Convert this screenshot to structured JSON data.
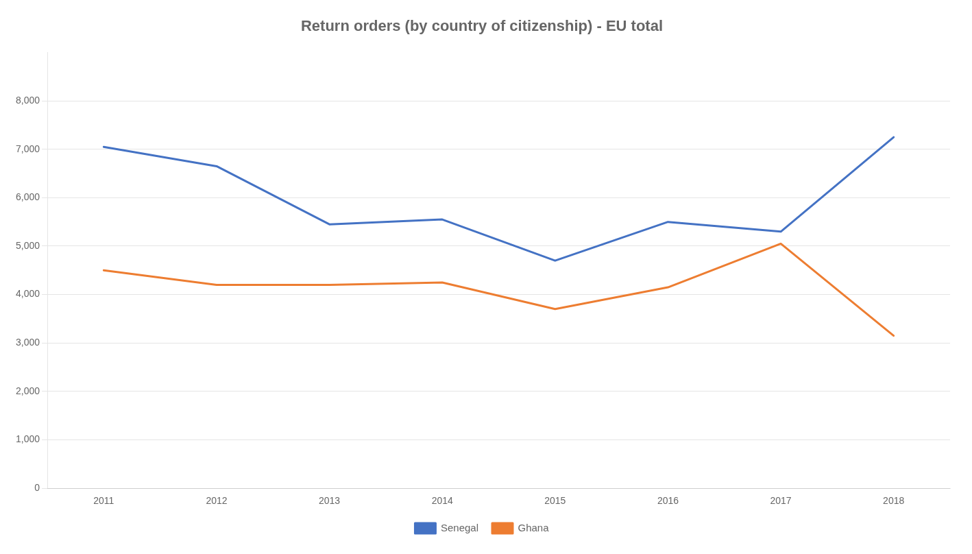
{
  "chart_data": {
    "type": "line",
    "title": "Return orders (by country of citizenship) - EU total",
    "categories": [
      "2011",
      "2012",
      "2013",
      "2014",
      "2015",
      "2016",
      "2017",
      "2018"
    ],
    "series": [
      {
        "name": "Senegal",
        "color": "#4472C4",
        "values": [
          7050,
          6650,
          5450,
          5550,
          4700,
          5500,
          5300,
          7250
        ]
      },
      {
        "name": "Ghana",
        "color": "#ED7D31",
        "values": [
          4500,
          4200,
          4200,
          4250,
          3700,
          4150,
          5050,
          3150
        ]
      }
    ],
    "ylim": [
      0,
      9000
    ],
    "yticks": [
      0,
      {
        "value": 1000,
        "label": "1,000"
      },
      {
        "value": 2000,
        "label": "2,000"
      },
      {
        "value": 3000,
        "label": "3,000"
      },
      {
        "value": 4000,
        "label": "4,000"
      },
      {
        "value": 5000,
        "label": "5,000"
      },
      {
        "value": 6000,
        "label": "6,000"
      },
      {
        "value": 7000,
        "label": "7,000"
      },
      {
        "value": 8000,
        "label": "8,000"
      }
    ],
    "grid": true,
    "legend": "bottom"
  }
}
